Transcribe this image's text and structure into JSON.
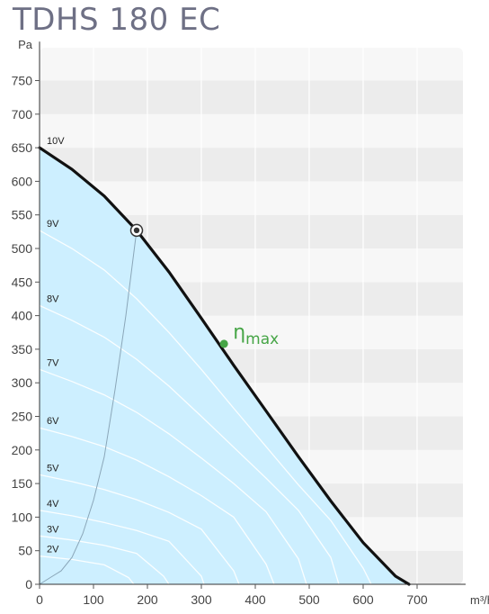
{
  "title": "TDHS 180 EC",
  "colors": {
    "fan_curve": "#111111",
    "fill": "#cdefff",
    "eta_marker": "#46a546",
    "system_curve": "#8aa6b8",
    "band_dark": "#ececec",
    "band_light": "#f7f7f7",
    "voltage_curve": "#ffffff"
  },
  "chart_data": {
    "type": "line",
    "title": "TDHS 180 EC",
    "xlabel": "m³/h",
    "ylabel": "Pa",
    "xlim": [
      0,
      790
    ],
    "ylim": [
      0,
      800
    ],
    "x_ticks": [
      "0",
      "100",
      "200",
      "300",
      "400",
      "500",
      "600",
      "700"
    ],
    "y_ticks": [
      "0",
      "50",
      "100",
      "150",
      "200",
      "250",
      "300",
      "350",
      "400",
      "450",
      "500",
      "550",
      "600",
      "650",
      "700",
      "750"
    ],
    "grid": true,
    "series": [
      {
        "name": "10V",
        "x": [
          0,
          60,
          120,
          180,
          240,
          300,
          360,
          420,
          480,
          540,
          600,
          660,
          685
        ],
        "y": [
          650,
          618,
          578,
          527,
          465,
          396,
          326,
          258,
          190,
          124,
          62,
          12,
          0
        ]
      },
      {
        "name": "9V",
        "x": [
          0,
          60,
          120,
          180,
          240,
          300,
          360,
          420,
          480,
          540,
          600,
          615
        ],
        "y": [
          527,
          500,
          468,
          425,
          375,
          320,
          262,
          205,
          148,
          95,
          24,
          0
        ]
      },
      {
        "name": "8V",
        "x": [
          0,
          60,
          120,
          180,
          240,
          300,
          360,
          420,
          480,
          540,
          555
        ],
        "y": [
          415,
          393,
          368,
          335,
          295,
          250,
          204,
          158,
          110,
          40,
          0
        ]
      },
      {
        "name": "7V",
        "x": [
          0,
          60,
          120,
          180,
          240,
          300,
          360,
          420,
          480,
          495
        ],
        "y": [
          320,
          302,
          282,
          256,
          224,
          188,
          150,
          108,
          38,
          0
        ]
      },
      {
        "name": "6V",
        "x": [
          0,
          60,
          120,
          180,
          240,
          300,
          360,
          420,
          435
        ],
        "y": [
          233,
          220,
          205,
          185,
          160,
          132,
          100,
          30,
          0
        ]
      },
      {
        "name": "5V",
        "x": [
          0,
          60,
          120,
          180,
          240,
          300,
          360,
          370
        ],
        "y": [
          163,
          153,
          141,
          126,
          107,
          82,
          20,
          0
        ]
      },
      {
        "name": "4V",
        "x": [
          0,
          60,
          120,
          180,
          240,
          300,
          305
        ],
        "y": [
          110,
          102,
          92,
          80,
          64,
          12,
          0
        ]
      },
      {
        "name": "3V",
        "x": [
          0,
          60,
          120,
          180,
          230,
          240
        ],
        "y": [
          72,
          66,
          58,
          46,
          12,
          0
        ]
      },
      {
        "name": "2V",
        "x": [
          0,
          60,
          120,
          165,
          175
        ],
        "y": [
          42,
          37,
          29,
          10,
          0
        ]
      },
      {
        "name": "",
        "x": [
          0,
          20,
          40,
          60,
          80,
          100,
          120,
          140,
          160,
          180
        ],
        "y": [
          0,
          10,
          20,
          40,
          75,
          125,
          190,
          290,
          400,
          527
        ]
      }
    ],
    "annotations": [
      {
        "text": "η",
        "subscript": "max",
        "x": 342,
        "y": 358
      }
    ],
    "operating_point": {
      "x": 180,
      "y": 527
    }
  }
}
